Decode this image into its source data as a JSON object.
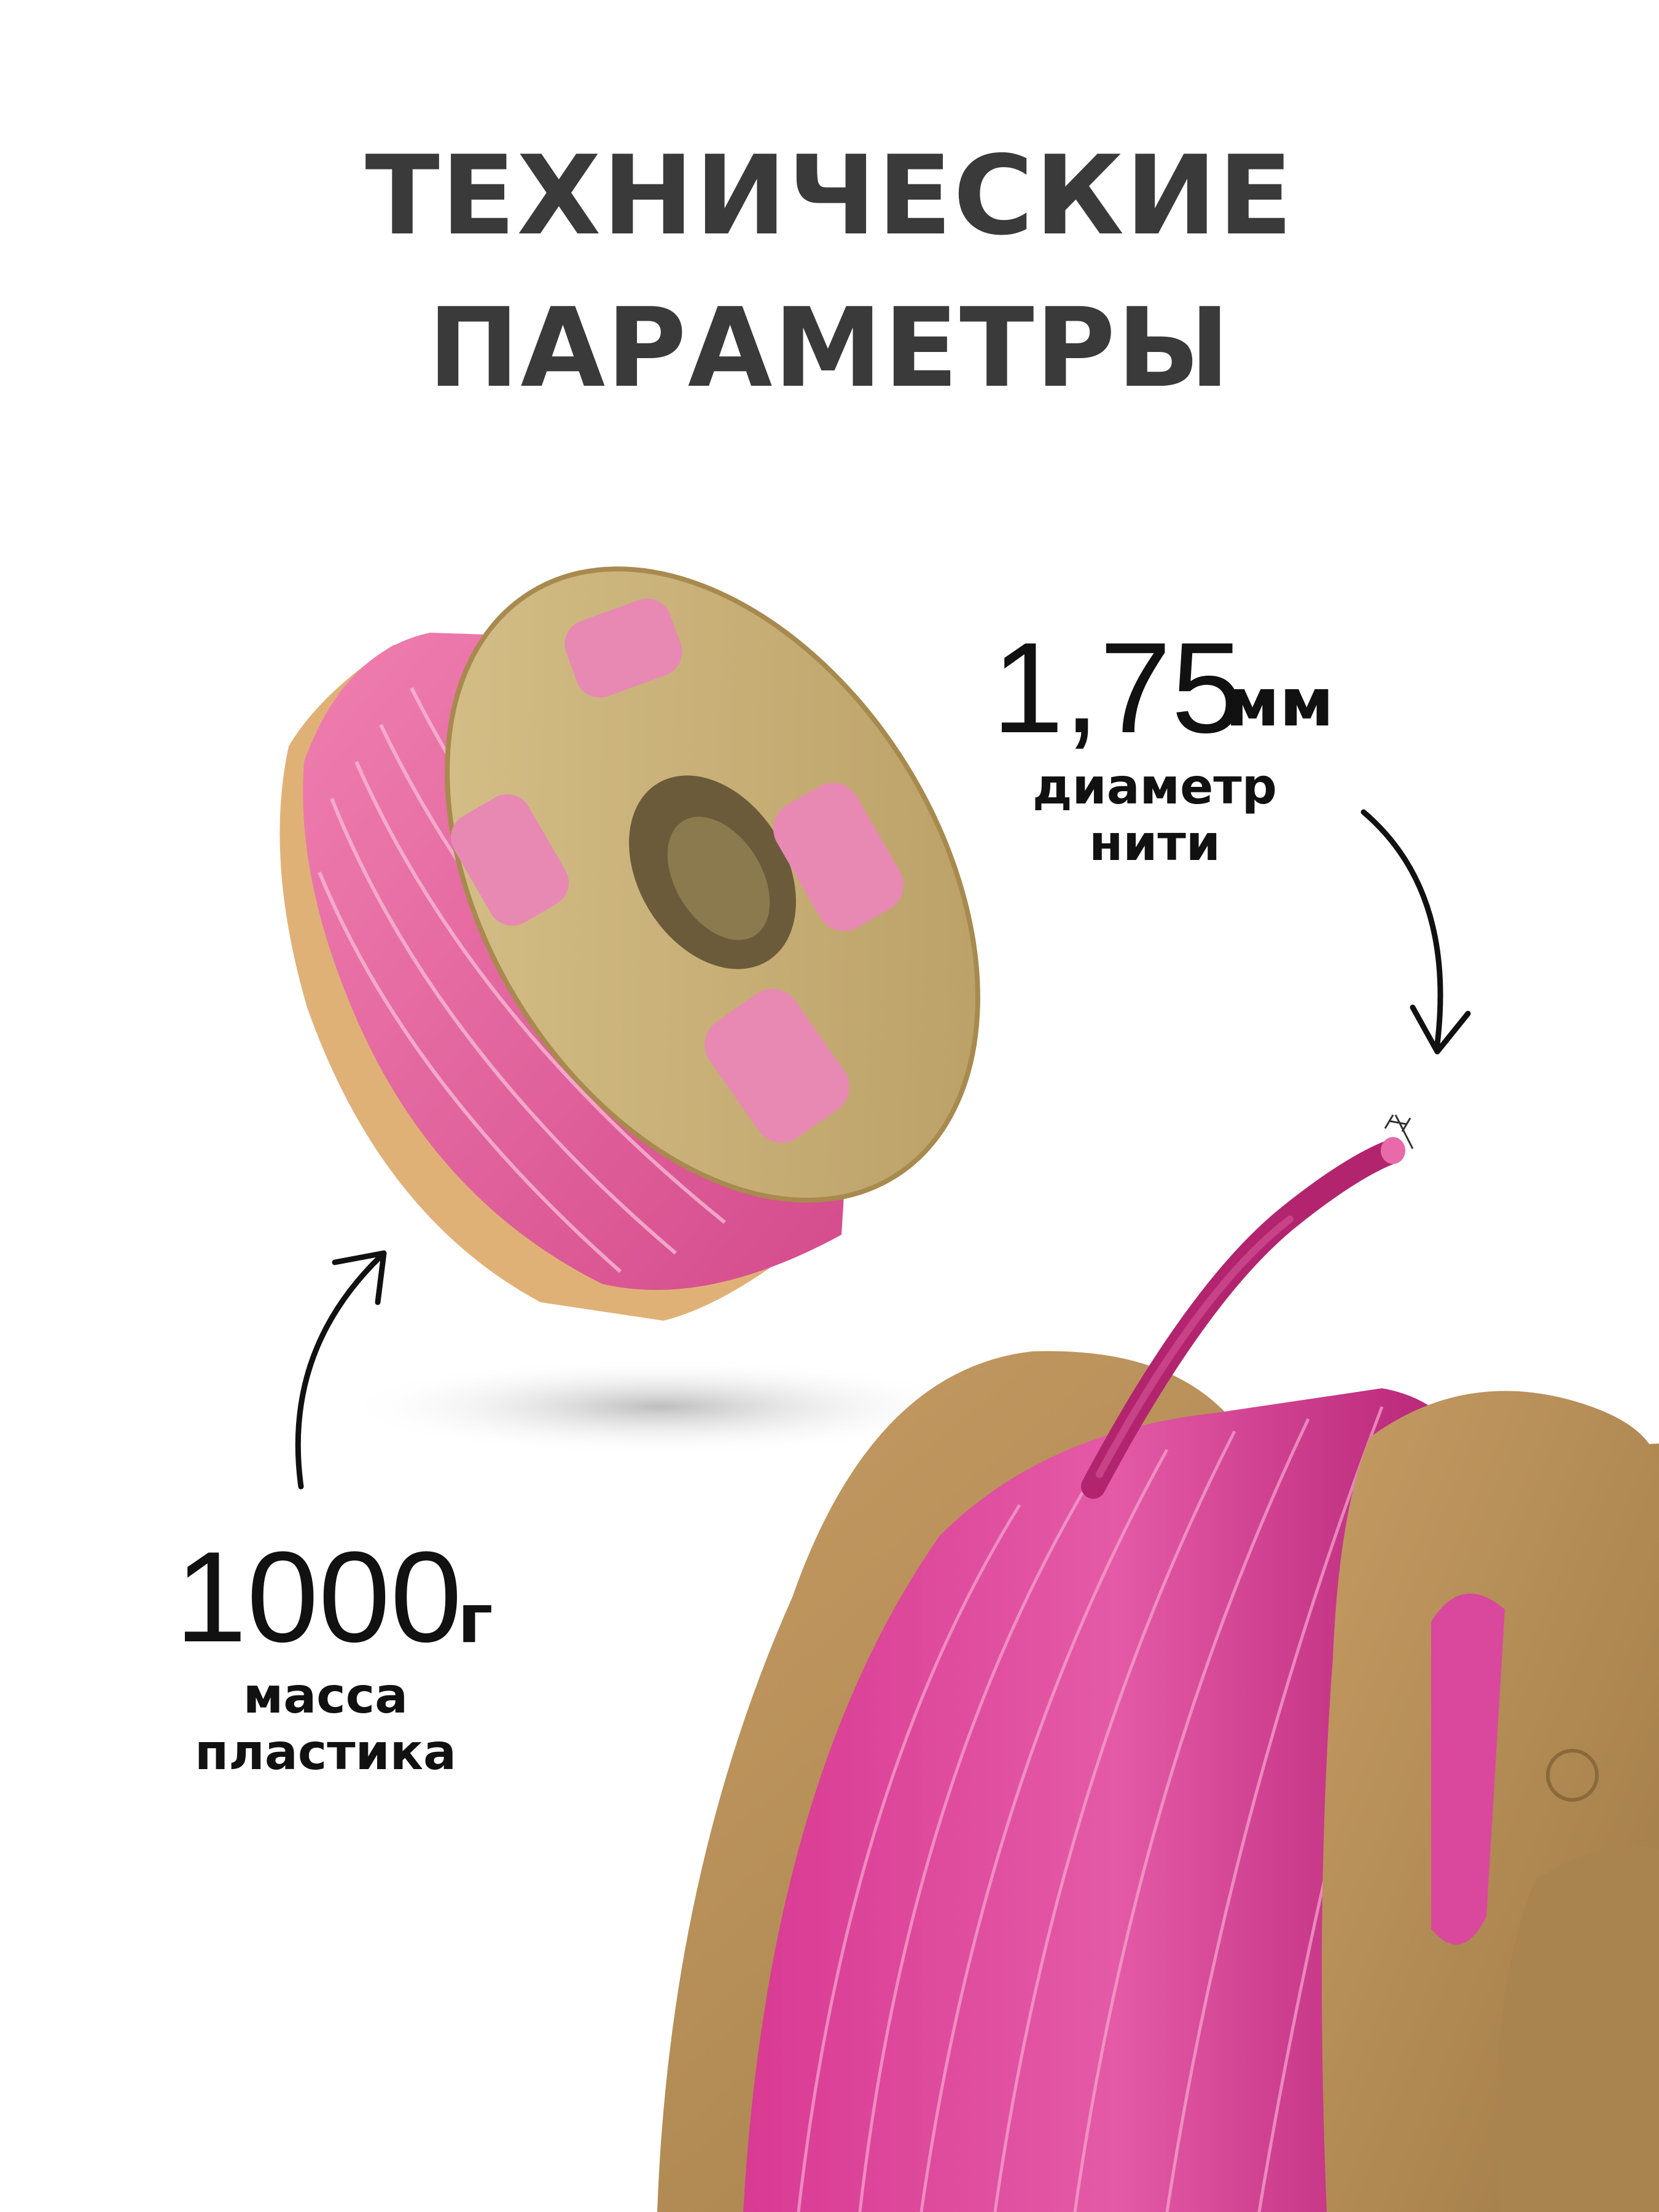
{
  "header": {
    "title_line1": "ТЕХНИЧЕСКИЕ",
    "title_line2": "ПАРАМЕТРЫ"
  },
  "specs": {
    "diameter": {
      "value": "1,75",
      "unit": "мм",
      "label_line1": "диаметр",
      "label_line2": "нити"
    },
    "mass": {
      "value": "1000",
      "unit": "г",
      "label_line1": "масса",
      "label_line2": "пластика"
    }
  },
  "colors": {
    "title": "#3a3a3a",
    "text": "#111111",
    "filament_pink": "#e0609a",
    "filament_magenta": "#c2247a",
    "spool_small": "#c9b47e",
    "spool_large": "#b08a55"
  },
  "icons": {
    "arrow_top": "curved-arrow-down-icon",
    "arrow_bottom": "curved-arrow-up-icon",
    "diameter_marker": "diameter-marker-icon"
  }
}
